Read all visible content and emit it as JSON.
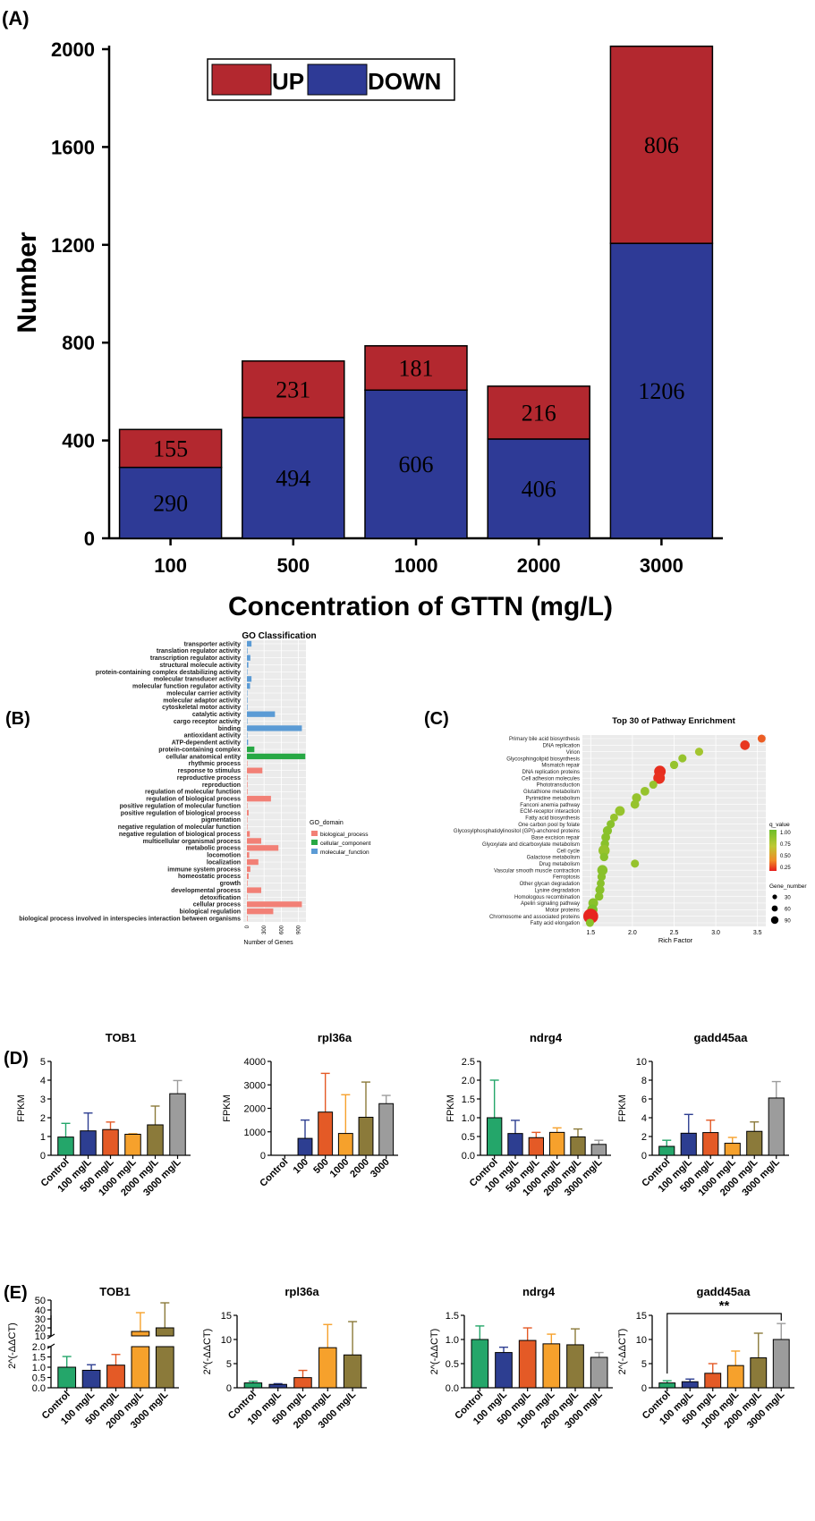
{
  "panels": {
    "A": "(A)",
    "B": "(B)",
    "C": "(C)",
    "D": "(D)",
    "E": "(E)"
  },
  "colors": {
    "up": "#b3282f",
    "down": "#2e3a96",
    "go_bio": "#f28076",
    "go_cell": "#27a844",
    "go_mol": "#5b9bd5",
    "green": "#24a66a",
    "blue": "#2d3e91",
    "red": "#e45a26",
    "orange": "#f6a12c",
    "olive": "#8b7a3a",
    "gray": "#9c9c9c"
  },
  "chart_data": [
    {
      "id": "A",
      "type": "bar",
      "stacked": true,
      "categories": [
        "100",
        "500",
        "1000",
        "2000",
        "3000"
      ],
      "series": [
        {
          "name": "DOWN",
          "values": [
            290,
            494,
            606,
            406,
            1206
          ]
        },
        {
          "name": "UP",
          "values": [
            155,
            231,
            181,
            216,
            806
          ]
        }
      ],
      "xlabel": "Concentration of GTTN (mg/L)",
      "ylabel": "Number",
      "ylim": [
        0,
        2000
      ],
      "yticks": [
        "0",
        "400",
        "800",
        "1200",
        "1600",
        "2000"
      ],
      "legend": [
        "UP",
        "DOWN"
      ],
      "legend_position": "top-left"
    },
    {
      "id": "B",
      "type": "bar",
      "orientation": "horizontal",
      "title": "GO Classification",
      "xlabel": "Number of Genes",
      "xticks": [
        "0",
        "300",
        "600",
        "900"
      ],
      "xlim": [
        0,
        1000
      ],
      "legend_title": "GO_domain",
      "legend": [
        "biological_process",
        "cellular_component",
        "molecular_function"
      ],
      "categories": [
        {
          "label": "transporter activity",
          "value": 80,
          "domain": "molecular_function"
        },
        {
          "label": "translation regulator activity",
          "value": 10,
          "domain": "molecular_function"
        },
        {
          "label": "transcription regulator activity",
          "value": 60,
          "domain": "molecular_function"
        },
        {
          "label": "structural molecule activity",
          "value": 25,
          "domain": "molecular_function"
        },
        {
          "label": "protein-containing complex destabilizing activity",
          "value": 3,
          "domain": "molecular_function"
        },
        {
          "label": "molecular transducer activity",
          "value": 80,
          "domain": "molecular_function"
        },
        {
          "label": "molecular function regulator activity",
          "value": 55,
          "domain": "molecular_function"
        },
        {
          "label": "molecular carrier activity",
          "value": 5,
          "domain": "molecular_function"
        },
        {
          "label": "molecular adaptor activity",
          "value": 10,
          "domain": "molecular_function"
        },
        {
          "label": "cytoskeletal motor activity",
          "value": 10,
          "domain": "molecular_function"
        },
        {
          "label": "catalytic activity",
          "value": 490,
          "domain": "molecular_function"
        },
        {
          "label": "cargo receptor activity",
          "value": 5,
          "domain": "molecular_function"
        },
        {
          "label": "binding",
          "value": 960,
          "domain": "molecular_function"
        },
        {
          "label": "antioxidant activity",
          "value": 5,
          "domain": "molecular_function"
        },
        {
          "label": "ATP-dependent activity",
          "value": 20,
          "domain": "molecular_function"
        },
        {
          "label": "protein-containing complex",
          "value": 130,
          "domain": "cellular_component"
        },
        {
          "label": "cellular anatomical entity",
          "value": 1020,
          "domain": "cellular_component"
        },
        {
          "label": "rhythmic process",
          "value": 5,
          "domain": "biological_process"
        },
        {
          "label": "response to stimulus",
          "value": 270,
          "domain": "biological_process"
        },
        {
          "label": "reproductive process",
          "value": 10,
          "domain": "biological_process"
        },
        {
          "label": "reproduction",
          "value": 10,
          "domain": "biological_process"
        },
        {
          "label": "regulation of molecular function",
          "value": 10,
          "domain": "biological_process"
        },
        {
          "label": "regulation of biological process",
          "value": 420,
          "domain": "biological_process"
        },
        {
          "label": "positive regulation of molecular function",
          "value": 5,
          "domain": "biological_process"
        },
        {
          "label": "positive regulation of biological process",
          "value": 30,
          "domain": "biological_process"
        },
        {
          "label": "pigmentation",
          "value": 5,
          "domain": "biological_process"
        },
        {
          "label": "negative regulation of molecular function",
          "value": 5,
          "domain": "biological_process"
        },
        {
          "label": "negative regulation of biological process",
          "value": 50,
          "domain": "biological_process"
        },
        {
          "label": "multicellular organismal process",
          "value": 250,
          "domain": "biological_process"
        },
        {
          "label": "metabolic process",
          "value": 550,
          "domain": "biological_process"
        },
        {
          "label": "locomotion",
          "value": 40,
          "domain": "biological_process"
        },
        {
          "label": "localization",
          "value": 200,
          "domain": "biological_process"
        },
        {
          "label": "immune system process",
          "value": 60,
          "domain": "biological_process"
        },
        {
          "label": "homeostatic process",
          "value": 30,
          "domain": "biological_process"
        },
        {
          "label": "growth",
          "value": 10,
          "domain": "biological_process"
        },
        {
          "label": "developmental process",
          "value": 250,
          "domain": "biological_process"
        },
        {
          "label": "detoxification",
          "value": 5,
          "domain": "biological_process"
        },
        {
          "label": "cellular process",
          "value": 960,
          "domain": "biological_process"
        },
        {
          "label": "biological regulation",
          "value": 460,
          "domain": "biological_process"
        },
        {
          "label": "biological process involved in interspecies interaction between organisms",
          "value": 10,
          "domain": "biological_process"
        }
      ]
    },
    {
      "id": "C",
      "type": "scatter",
      "title": "Top 30 of Pathway Enrichment",
      "xlabel": "Rich Factor",
      "xlim": [
        1.4,
        3.6
      ],
      "xticks": [
        1.5,
        2.0,
        2.5,
        3.0,
        3.5
      ],
      "color_legend_title": "q_value",
      "color_ticks": [
        "1.00",
        "0.75",
        "0.50",
        "0.25"
      ],
      "size_legend_title": "Gene_number",
      "size_ticks": [
        "30",
        "60",
        "90"
      ],
      "points": [
        {
          "label": "Primary bile acid biosynthesis",
          "x": 3.55,
          "q": 0.2,
          "n": 7
        },
        {
          "label": "DNA replication",
          "x": 3.35,
          "q": 0.08,
          "n": 18
        },
        {
          "label": "Virion",
          "x": 2.8,
          "q": 0.8,
          "n": 8
        },
        {
          "label": "Glycosphingolipid biosynthesis",
          "x": 2.6,
          "q": 0.85,
          "n": 8
        },
        {
          "label": "Mismatch repair",
          "x": 2.5,
          "q": 0.85,
          "n": 9
        },
        {
          "label": "DNA replication proteins",
          "x": 2.33,
          "q": 0.05,
          "n": 40
        },
        {
          "label": "Cell adhesion molecules",
          "x": 2.32,
          "q": 0.06,
          "n": 40
        },
        {
          "label": "Phototransduction",
          "x": 2.25,
          "q": 0.85,
          "n": 8
        },
        {
          "label": "Glutathione metabolism",
          "x": 2.15,
          "q": 0.85,
          "n": 12
        },
        {
          "label": "Pyrimidine metabolism",
          "x": 2.05,
          "q": 0.85,
          "n": 15
        },
        {
          "label": "Fanconi anemia pathway",
          "x": 2.03,
          "q": 0.85,
          "n": 12
        },
        {
          "label": "ECM-receptor interaction",
          "x": 1.85,
          "q": 0.85,
          "n": 20
        },
        {
          "label": "Fatty acid biosynthesis",
          "x": 1.78,
          "q": 0.85,
          "n": 7
        },
        {
          "label": "One carbon pool by folate",
          "x": 1.74,
          "q": 0.9,
          "n": 8
        },
        {
          "label": "Glycosylphosphatidylinositol (GPI)-anchored proteins",
          "x": 1.7,
          "q": 0.9,
          "n": 15
        },
        {
          "label": "Base excision repair",
          "x": 1.68,
          "q": 0.9,
          "n": 12
        },
        {
          "label": "Glyoxylate and dicarboxylate metabolism",
          "x": 1.67,
          "q": 0.9,
          "n": 10
        },
        {
          "label": "Cell cycle",
          "x": 1.66,
          "q": 0.85,
          "n": 35
        },
        {
          "label": "Galactose metabolism",
          "x": 1.66,
          "q": 0.9,
          "n": 10
        },
        {
          "label": "Drug metabolism",
          "x": 2.03,
          "q": 0.85,
          "n": 8
        },
        {
          "label": "Vascular smooth muscle contraction",
          "x": 1.64,
          "q": 0.9,
          "n": 25
        },
        {
          "label": "Ferroptosis",
          "x": 1.63,
          "q": 0.9,
          "n": 9
        },
        {
          "label": "Other glycan degradation",
          "x": 1.62,
          "q": 0.9,
          "n": 7
        },
        {
          "label": "Lysine degradation",
          "x": 1.61,
          "q": 0.9,
          "n": 14
        },
        {
          "label": "Homologous recombination",
          "x": 1.6,
          "q": 0.9,
          "n": 10
        },
        {
          "label": "Apelin signaling pathway",
          "x": 1.53,
          "q": 0.9,
          "n": 20
        },
        {
          "label": "Motor proteins",
          "x": 1.52,
          "q": 0.95,
          "n": 25
        },
        {
          "label": "Chromosome and associated proteins",
          "x": 1.5,
          "q": 0.02,
          "n": 95
        },
        {
          "label": "Fatty acid elongation",
          "x": 1.49,
          "q": 0.9,
          "n": 8
        }
      ]
    },
    {
      "id": "D1",
      "type": "bar",
      "title": "TOB1",
      "ylabel": "FPKM",
      "categories": [
        "Control",
        "100 mg/L",
        "500 mg/L",
        "1000 mg/L",
        "2000 mg/L",
        "3000 mg/L"
      ],
      "values": [
        0.97,
        1.3,
        1.37,
        1.12,
        1.62,
        3.28
      ],
      "errors": [
        0.73,
        0.95,
        0.4,
        0.03,
        1.0,
        0.7
      ],
      "ylim": [
        0,
        5
      ],
      "yticks": [
        "0",
        "1",
        "2",
        "3",
        "4",
        "5"
      ]
    },
    {
      "id": "D2",
      "type": "bar",
      "title": "rpl36a",
      "ylabel": "FPKM",
      "categories": [
        "Control",
        "100",
        "500",
        "1000",
        "2000",
        "3000"
      ],
      "values": [
        0,
        720,
        1840,
        930,
        1620,
        2200
      ],
      "errors": [
        0,
        780,
        1650,
        1650,
        1500,
        350
      ],
      "ylim": [
        0,
        4000
      ],
      "yticks": [
        "0",
        "1000",
        "2000",
        "3000",
        "4000"
      ]
    },
    {
      "id": "D3",
      "type": "bar",
      "title": "ndrg4",
      "ylabel": "FPKM",
      "categories": [
        "Control",
        "100 mg/L",
        "500 mg/L",
        "1000 mg/L",
        "2000 mg/L",
        "3000 mg/L"
      ],
      "values": [
        1.0,
        0.58,
        0.47,
        0.61,
        0.49,
        0.29
      ],
      "errors": [
        1.0,
        0.35,
        0.14,
        0.12,
        0.21,
        0.11
      ],
      "ylim": [
        0,
        2.5
      ],
      "yticks": [
        "0.0",
        "0.5",
        "1.0",
        "1.5",
        "2.0",
        "2.5"
      ]
    },
    {
      "id": "D4",
      "type": "bar",
      "title": "gadd45aa",
      "ylabel": "FPKM",
      "categories": [
        "Control",
        "100 mg/L",
        "500 mg/L",
        "1000 mg/L",
        "2000 mg/L",
        "3000 mg/L"
      ],
      "values": [
        0.95,
        2.35,
        2.42,
        1.28,
        2.55,
        6.1
      ],
      "errors": [
        0.65,
        2.0,
        1.32,
        0.62,
        1.0,
        1.75
      ],
      "ylim": [
        0,
        10
      ],
      "yticks": [
        "0",
        "2",
        "4",
        "6",
        "8",
        "10"
      ]
    },
    {
      "id": "E1",
      "type": "bar",
      "title": "TOB1",
      "ylabel": "2^(-ΔΔCT)",
      "categories": [
        "Control",
        "100 mg/L",
        "500 mg/L",
        "2000 mg/L",
        "3000 mg/L"
      ],
      "values": [
        1.0,
        0.85,
        1.1,
        15,
        19
      ],
      "errors": [
        0.52,
        0.27,
        0.52,
        21,
        28
      ],
      "axis_break": true,
      "yticks_low": [
        "0.0",
        "0.5",
        "1.0",
        "1.5",
        "2.0"
      ],
      "yticks_high": [
        "10",
        "20",
        "30",
        "40",
        "50"
      ]
    },
    {
      "id": "E2",
      "type": "bar",
      "title": "rpl36a",
      "ylabel": "2^(-ΔΔCT)",
      "categories": [
        "Control",
        "100 mg/L",
        "500 mg/L",
        "2000 mg/L",
        "3000 mg/L"
      ],
      "values": [
        1.0,
        0.7,
        2.1,
        8.3,
        6.8
      ],
      "errors": [
        0.35,
        0.15,
        1.5,
        4.8,
        6.9
      ],
      "ylim": [
        0,
        15
      ],
      "yticks": [
        "0",
        "5",
        "10",
        "15"
      ]
    },
    {
      "id": "E3",
      "type": "bar",
      "title": "ndrg4",
      "ylabel": "2^(-ΔΔCT)",
      "categories": [
        "Control",
        "100 mg/L",
        "500 mg/L",
        "1000 mg/L",
        "2000 mg/L",
        "3000 mg/L"
      ],
      "values": [
        1.0,
        0.73,
        0.98,
        0.91,
        0.89,
        0.63
      ],
      "errors": [
        0.28,
        0.11,
        0.26,
        0.2,
        0.33,
        0.1
      ],
      "ylim": [
        0,
        1.5
      ],
      "yticks": [
        "0.0",
        "0.5",
        "1.0",
        "1.5"
      ]
    },
    {
      "id": "E4",
      "type": "bar",
      "title": "gadd45aa",
      "ylabel": "2^(-ΔΔCT)",
      "categories": [
        "Control",
        "100 mg/L",
        "500 mg/L",
        "1000 mg/L",
        "2000 mg/L",
        "3000 mg/L"
      ],
      "values": [
        1.0,
        1.25,
        3.0,
        4.6,
        6.2,
        10.0
      ],
      "errors": [
        0.45,
        0.55,
        2.0,
        3.0,
        5.1,
        3.3
      ],
      "ylim": [
        0,
        15
      ],
      "yticks": [
        "0",
        "5",
        "10",
        "15"
      ],
      "significance": {
        "label": "**",
        "from": 0,
        "to": 5
      }
    }
  ]
}
